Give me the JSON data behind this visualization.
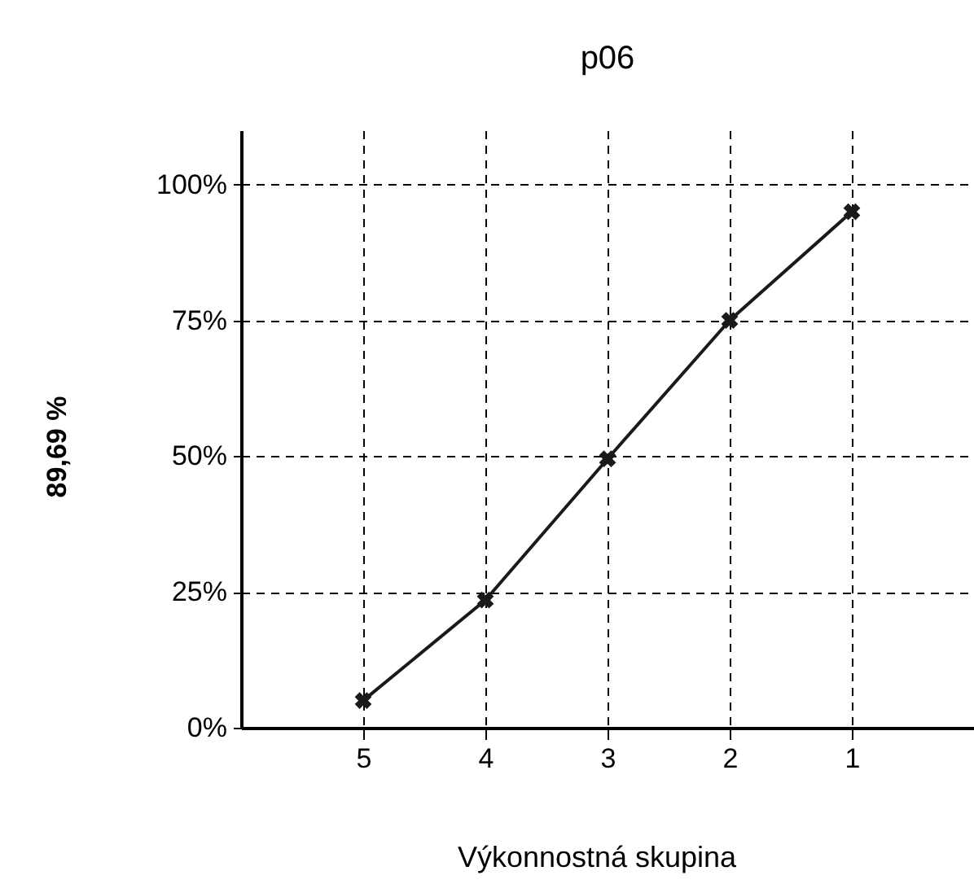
{
  "chart_data": {
    "type": "line",
    "title": "p06",
    "xlabel": "Výkonnostná skupina",
    "ylabel": "89,69 %",
    "categories": [
      "5",
      "4",
      "3",
      "2",
      "1"
    ],
    "series": [
      {
        "color": "#1a1a1a",
        "values": [
          5,
          23.5,
          49.5,
          75,
          95
        ]
      }
    ],
    "ylim": [
      0,
      110
    ],
    "yticks": [
      {
        "value": 0,
        "label": "0%"
      },
      {
        "value": 25,
        "label": "25%"
      },
      {
        "value": 50,
        "label": "50%"
      },
      {
        "value": 75,
        "label": "75%"
      },
      {
        "value": 100,
        "label": "100%"
      }
    ],
    "grid": true,
    "marker": "cross",
    "line_style": "solid"
  }
}
